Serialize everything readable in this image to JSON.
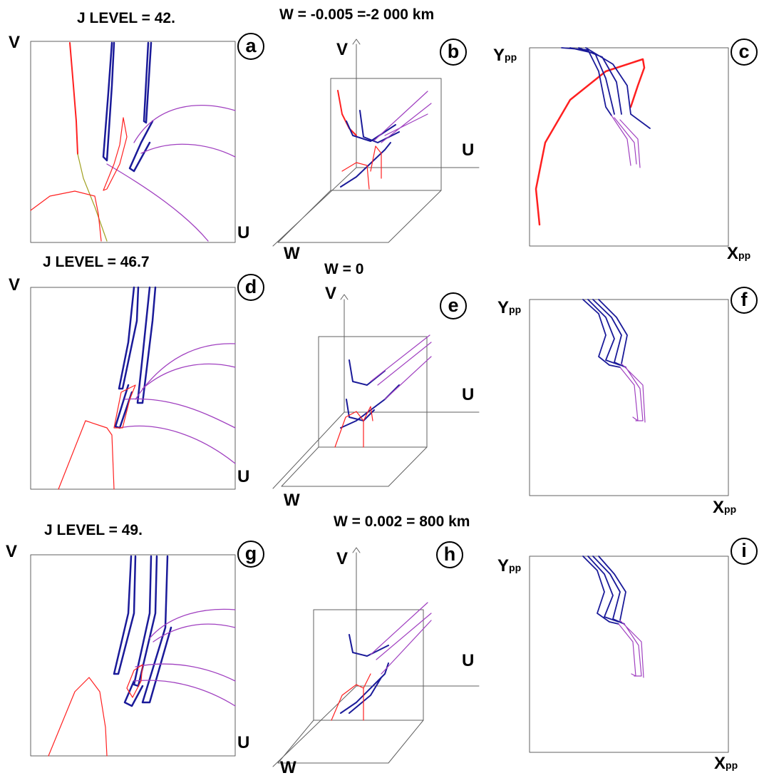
{
  "rows": [
    {
      "j_level": "J LEVEL = 42.",
      "w_label": "W = -0.005 =-2 000 km"
    },
    {
      "j_level": "J  LEVEL = 46.7",
      "w_label": "W = 0"
    },
    {
      "j_level": "J  LEVEL = 49.",
      "w_label": "W = 0.002 = 800 km"
    }
  ],
  "panels": [
    "a",
    "b",
    "c",
    "d",
    "e",
    "f",
    "g",
    "h",
    "i"
  ],
  "axes": {
    "u": "U",
    "v": "V",
    "w": "W",
    "x_main": "X",
    "x_sub": "pp",
    "y_main": "Y",
    "y_sub": "pp"
  },
  "colors": {
    "blue": "#1a1a99",
    "purple": "#a040c0",
    "red": "#ff2020",
    "olive": "#a0a020",
    "frame": "#606060"
  }
}
